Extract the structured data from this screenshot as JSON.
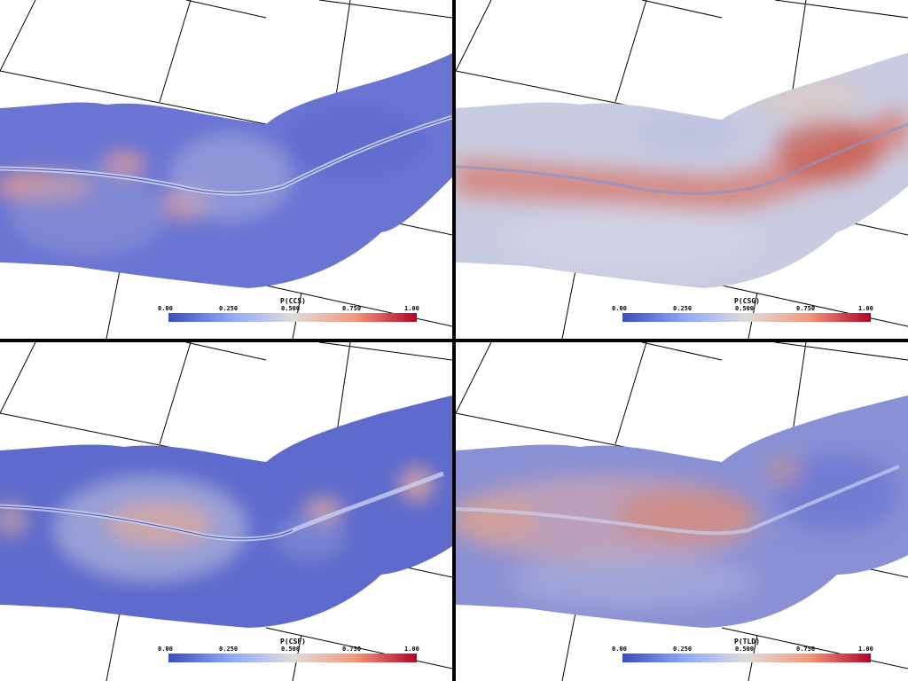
{
  "panels": [
    {
      "colorbar": {
        "title": "P(CCS)",
        "ticks": [
          "0.00",
          "0.250",
          "0.500",
          "0.750",
          "1.00"
        ]
      }
    },
    {
      "colorbar": {
        "title": "P(CSG)",
        "ticks": [
          "0.00",
          "0.250",
          "0.500",
          "0.750",
          "1.00"
        ]
      }
    },
    {
      "colorbar": {
        "title": "P(CSF)",
        "ticks": [
          "0.00",
          "0.250",
          "0.500",
          "0.750",
          "1.00"
        ]
      }
    },
    {
      "colorbar": {
        "title": "P(TLD)",
        "ticks": [
          "0.00",
          "0.250",
          "0.500",
          "0.750",
          "1.00"
        ]
      }
    }
  ],
  "colormap": {
    "low": "#3b4cc0",
    "mid": "#dddcdc",
    "high": "#b40426"
  }
}
